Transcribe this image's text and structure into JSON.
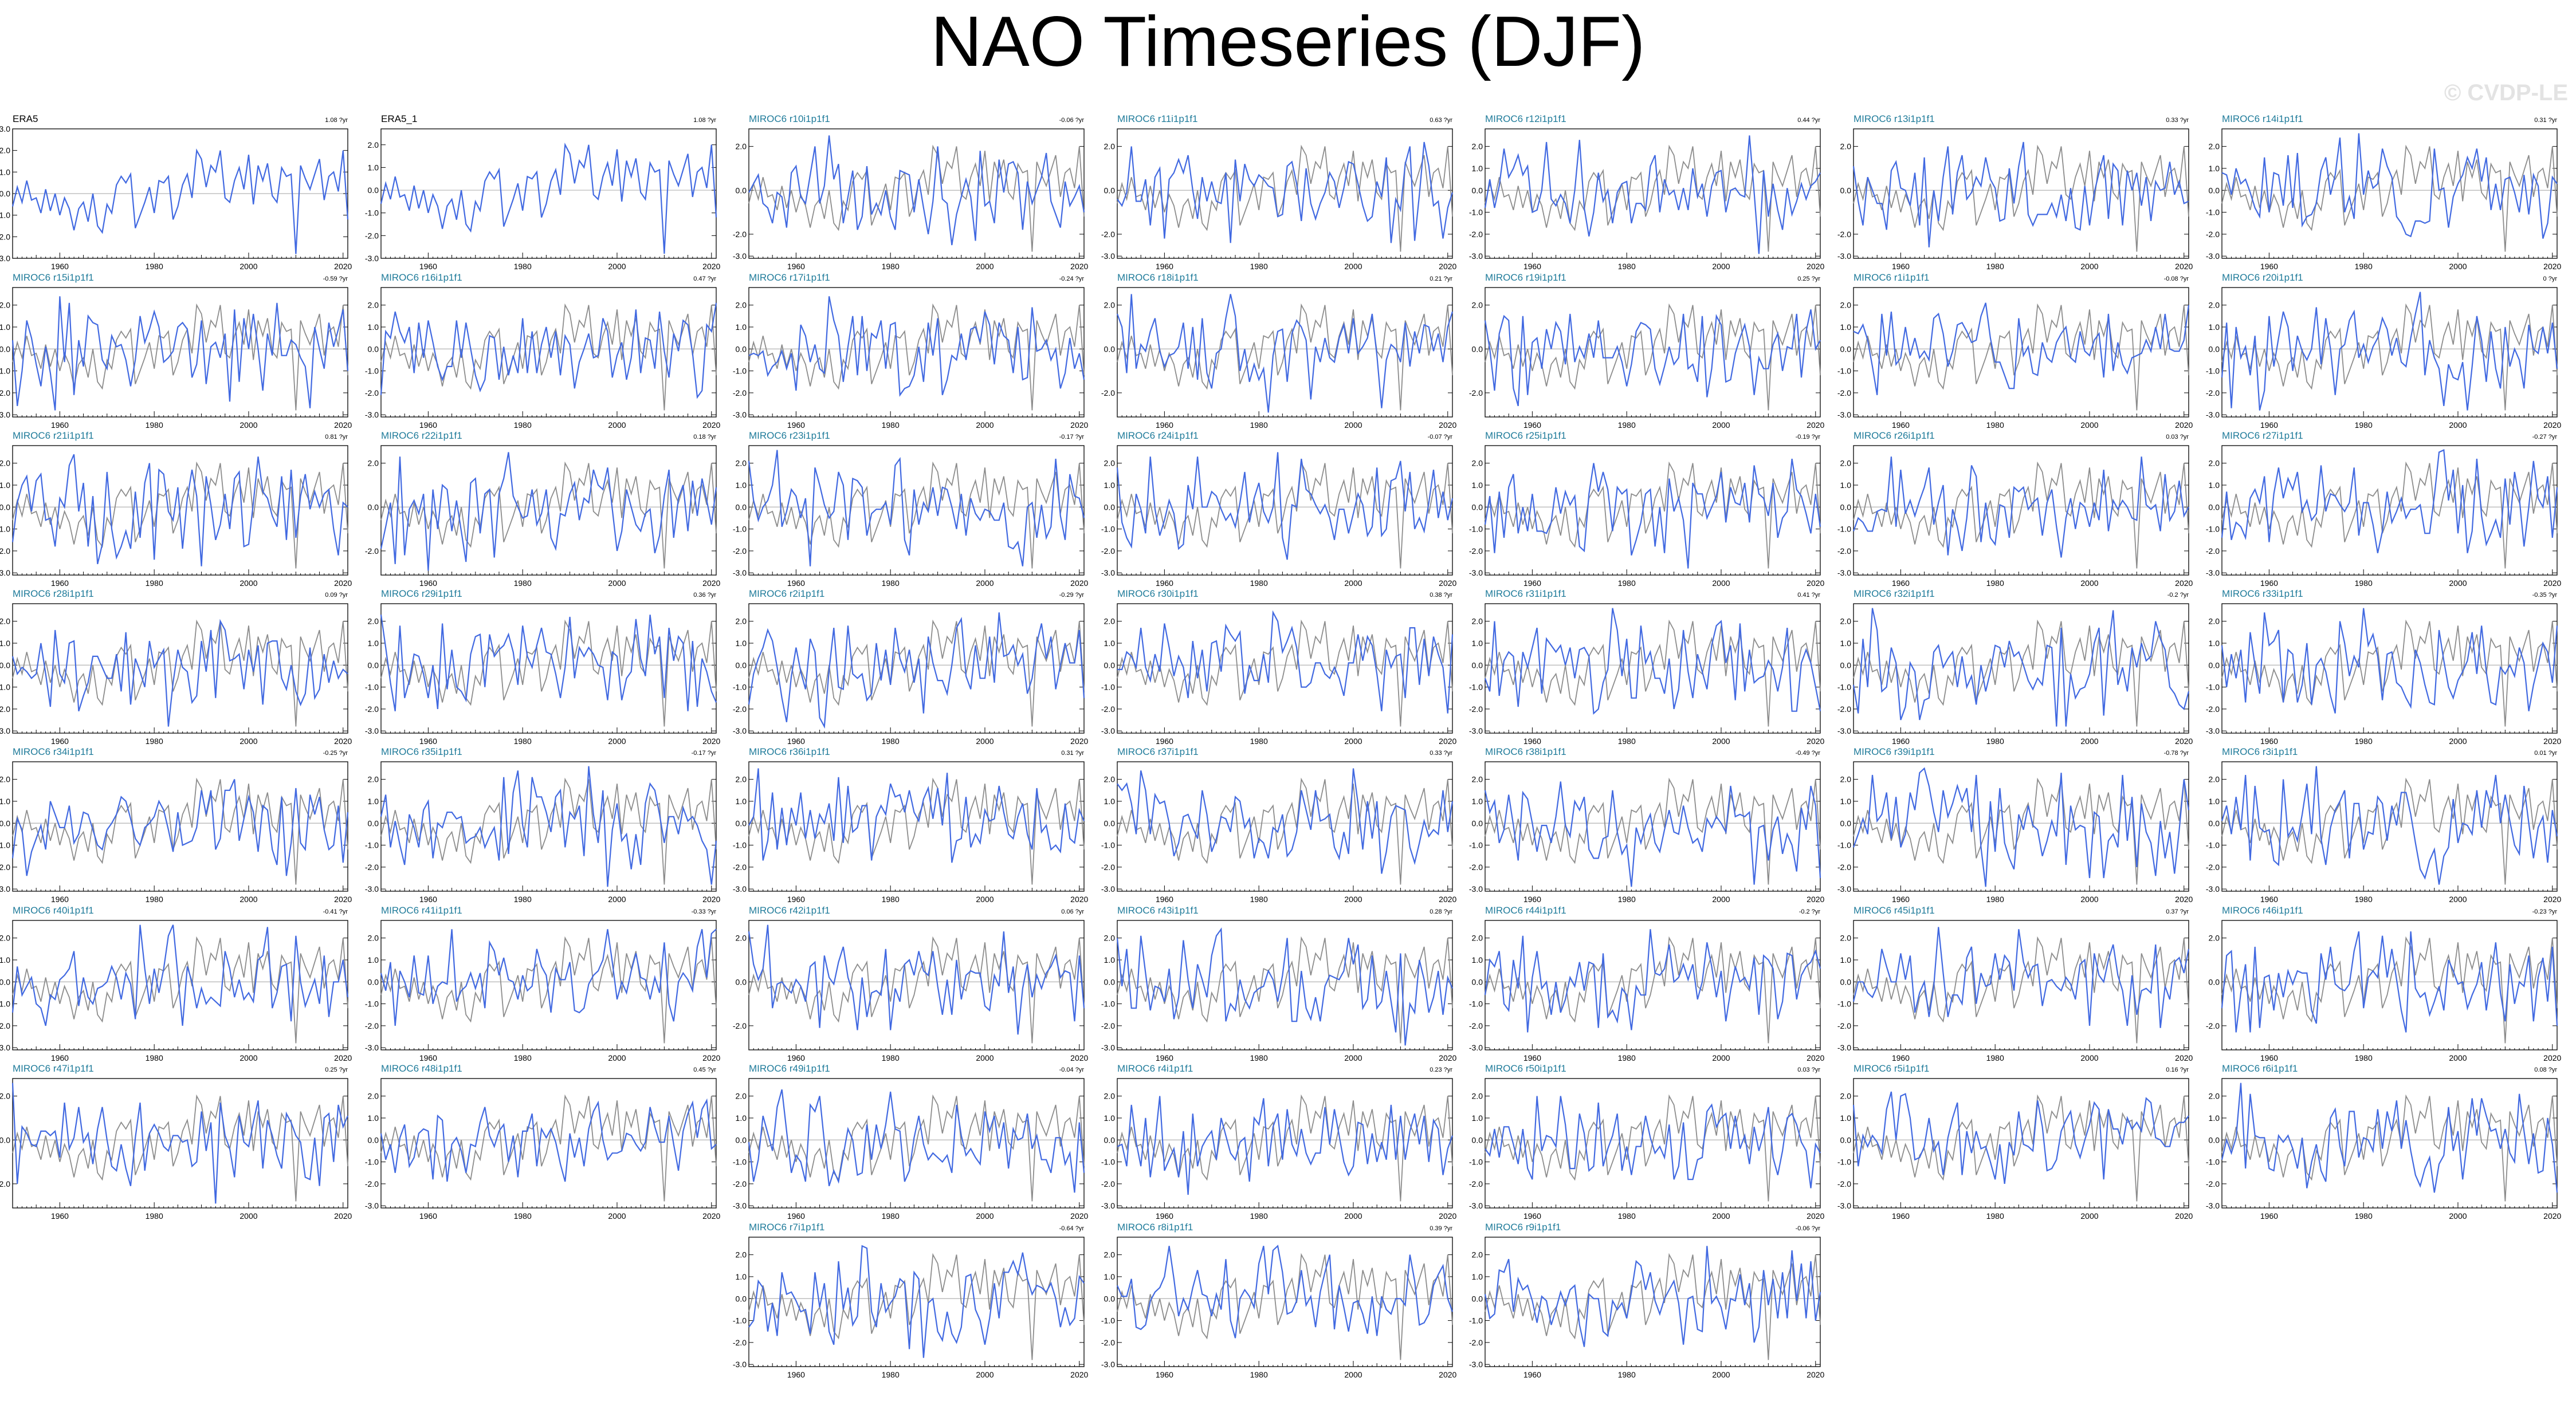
{
  "page": {
    "title": "NAO Timeseries (DJF)",
    "watermark": "© CVDP-LE"
  },
  "colors": {
    "ensemble_member": "#4169e1",
    "observation": "#000000",
    "obs_overlay": "#8c8c8c",
    "member_title": "#1f7b9a",
    "zero_line": "#b3b3b3"
  },
  "chart_data": [
    {
      "type": "line",
      "title": "ERA5",
      "trend": "1.08",
      "trend_unit": "?yr",
      "obs": true,
      "yticks": [
        -3,
        -2,
        -1,
        0,
        1,
        2,
        3
      ],
      "xticks": [
        1960,
        1980,
        2000,
        2020
      ],
      "xlim": [
        1950,
        2021
      ],
      "ylim": [
        -3,
        3
      ],
      "series": [
        {
          "values": [
            -0.6,
            0.3,
            -0.4,
            0.6,
            -0.3,
            -0.2,
            -0.9,
            0.2,
            -0.8,
            0.0,
            -1.0,
            -0.2,
            -0.7,
            -1.7,
            -0.7,
            -0.4,
            -1.3,
            0.0,
            -1.5,
            -1.8,
            -0.5,
            -0.9,
            0.4,
            0.8,
            0.5,
            0.9,
            -1.6,
            -1.0,
            -0.4,
            0.3,
            -0.9,
            0.6,
            0.5,
            0.8,
            -1.2,
            -0.6,
            0.4,
            0.9,
            -0.2,
            2.0,
            1.6,
            0.3,
            1.3,
            1.0,
            2.0,
            -0.2,
            -0.4,
            0.6,
            1.2,
            0.2,
            1.8,
            -0.5,
            1.3,
            0.6,
            1.4,
            -0.1,
            -0.4,
            1.2,
            0.8,
            0.9,
            -2.8,
            1.3,
            0.7,
            0.2,
            0.9,
            1.6,
            -0.3,
            0.8,
            1.0,
            0.1,
            2.0,
            -1.2
          ]
        }
      ]
    },
    {
      "type": "line",
      "title": "ERA5_1",
      "trend": "1.08",
      "trend_unit": "?yr",
      "obs": true,
      "yticks": [
        -3,
        -2,
        -1,
        0,
        1,
        2
      ],
      "xticks": [
        1960,
        1980,
        2000,
        2020
      ],
      "xlim": [
        1950,
        2021
      ],
      "ylim": [
        -3,
        2.7
      ],
      "series": [
        {
          "values": [
            -0.6,
            0.3,
            -0.4,
            0.6,
            -0.3,
            -0.2,
            -0.9,
            0.2,
            -0.8,
            0.0,
            -1.0,
            -0.2,
            -0.7,
            -1.7,
            -0.7,
            -0.4,
            -1.3,
            0.0,
            -1.5,
            -1.8,
            -0.5,
            -0.9,
            0.4,
            0.8,
            0.5,
            0.9,
            -1.6,
            -1.0,
            -0.4,
            0.3,
            -0.9,
            0.6,
            0.5,
            0.8,
            -1.2,
            -0.6,
            0.4,
            0.9,
            -0.2,
            2.0,
            1.6,
            0.3,
            1.3,
            1.0,
            2.0,
            -0.2,
            -0.4,
            0.6,
            1.2,
            0.2,
            1.8,
            -0.5,
            1.3,
            0.6,
            1.4,
            -0.1,
            -0.4,
            1.2,
            0.8,
            0.9,
            -2.8,
            1.3,
            0.7,
            0.2,
            0.9,
            1.6,
            -0.3,
            0.8,
            1.0,
            0.1,
            2.0,
            -1.2
          ]
        }
      ]
    },
    {
      "type": "line",
      "title": "MIROC6 r10i1p1f1",
      "trend": "-0.06",
      "trend_unit": "?yr",
      "seed": 10,
      "yticks": [
        -3,
        -2,
        0,
        2
      ]
    },
    {
      "type": "line",
      "title": "MIROC6 r11i1p1f1",
      "trend": "0.63",
      "trend_unit": "?yr",
      "seed": 11,
      "yticks": [
        -3,
        -2,
        0,
        2
      ]
    },
    {
      "type": "line",
      "title": "MIROC6 r12i1p1f1",
      "trend": "0.44",
      "trend_unit": "?yr",
      "seed": 12,
      "yticks": [
        -3,
        -2,
        -1,
        0,
        1,
        2
      ]
    },
    {
      "type": "line",
      "title": "MIROC6 r13i1p1f1",
      "trend": "0.33",
      "trend_unit": "?yr",
      "seed": 13,
      "yticks": [
        -3,
        -2,
        0,
        2
      ]
    },
    {
      "type": "line",
      "title": "MIROC6 r14i1p1f1",
      "trend": "0.31",
      "trend_unit": "?yr",
      "seed": 14,
      "yticks": [
        -3,
        -2,
        -1,
        0,
        1,
        2
      ]
    },
    {
      "type": "line",
      "title": "MIROC6 r15i1p1f1",
      "trend": "-0.59",
      "trend_unit": "?yr",
      "seed": 15,
      "yticks": [
        -3,
        -2,
        -1,
        0,
        1,
        2
      ]
    },
    {
      "type": "line",
      "title": "MIROC6 r16i1p1f1",
      "trend": "0.47",
      "trend_unit": "?yr",
      "seed": 16,
      "yticks": [
        -3,
        -2,
        -1,
        0,
        1,
        2
      ]
    },
    {
      "type": "line",
      "title": "MIROC6 r17i1p1f1",
      "trend": "-0.24",
      "trend_unit": "?yr",
      "seed": 17,
      "yticks": [
        -3,
        -2,
        -1,
        0,
        1,
        2
      ]
    },
    {
      "type": "line",
      "title": "MIROC6 r18i1p1f1",
      "trend": "0.21",
      "trend_unit": "?yr",
      "seed": 18,
      "yticks": [
        -2,
        0,
        2
      ]
    },
    {
      "type": "line",
      "title": "MIROC6 r19i1p1f1",
      "trend": "0.25",
      "trend_unit": "?yr",
      "seed": 19,
      "yticks": [
        -2,
        0,
        2
      ]
    },
    {
      "type": "line",
      "title": "MIROC6 r1i1p1f1",
      "trend": "-0.08",
      "trend_unit": "?yr",
      "seed": 1,
      "yticks": [
        -3,
        -2,
        -1,
        0,
        1,
        2
      ]
    },
    {
      "type": "line",
      "title": "MIROC6 r20i1p1f1",
      "trend": "0",
      "trend_unit": "?yr",
      "seed": 20,
      "yticks": [
        -3,
        -2,
        -1,
        0,
        1,
        2
      ]
    },
    {
      "type": "line",
      "title": "MIROC6 r21i1p1f1",
      "trend": "0.81",
      "trend_unit": "?yr",
      "seed": 21,
      "yticks": [
        -3,
        -2,
        -1,
        0,
        1,
        2
      ]
    },
    {
      "type": "line",
      "title": "MIROC6 r22i1p1f1",
      "trend": "0.18",
      "trend_unit": "?yr",
      "seed": 22,
      "yticks": [
        -2,
        0,
        2
      ]
    },
    {
      "type": "line",
      "title": "MIROC6 r23i1p1f1",
      "trend": "-0.17",
      "trend_unit": "?yr",
      "seed": 23,
      "yticks": [
        -3,
        -2,
        -1,
        0,
        1,
        2
      ]
    },
    {
      "type": "line",
      "title": "MIROC6 r24i1p1f1",
      "trend": "-0.07",
      "trend_unit": "?yr",
      "seed": 24,
      "yticks": [
        -3,
        -2,
        -1,
        0,
        1,
        2
      ]
    },
    {
      "type": "line",
      "title": "MIROC6 r25i1p1f1",
      "trend": "-0.19",
      "trend_unit": "?yr",
      "seed": 25,
      "yticks": [
        -3,
        -2,
        -1,
        0,
        1,
        2
      ]
    },
    {
      "type": "line",
      "title": "MIROC6 r26i1p1f1",
      "trend": "0.03",
      "trend_unit": "?yr",
      "seed": 26,
      "yticks": [
        -3,
        -2,
        -1,
        0,
        1,
        2
      ]
    },
    {
      "type": "line",
      "title": "MIROC6 r27i1p1f1",
      "trend": "-0.27",
      "trend_unit": "?yr",
      "seed": 27,
      "yticks": [
        -3,
        -2,
        -1,
        0,
        1,
        2
      ]
    },
    {
      "type": "line",
      "title": "MIROC6 r28i1p1f1",
      "trend": "0.09",
      "trend_unit": "?yr",
      "seed": 28,
      "yticks": [
        -3,
        -2,
        -1,
        0,
        1,
        2
      ]
    },
    {
      "type": "line",
      "title": "MIROC6 r29i1p1f1",
      "trend": "0.36",
      "trend_unit": "?yr",
      "seed": 29,
      "yticks": [
        -3,
        -2,
        -1,
        0,
        1,
        2
      ]
    },
    {
      "type": "line",
      "title": "MIROC6 r2i1p1f1",
      "trend": "-0.29",
      "trend_unit": "?yr",
      "seed": 2,
      "yticks": [
        -3,
        -2,
        -1,
        0,
        1,
        2
      ]
    },
    {
      "type": "line",
      "title": "MIROC6 r30i1p1f1",
      "trend": "0.38",
      "trend_unit": "?yr",
      "seed": 30,
      "yticks": [
        -3,
        -2,
        -1,
        0,
        1,
        2
      ]
    },
    {
      "type": "line",
      "title": "MIROC6 r31i1p1f1",
      "trend": "0.41",
      "trend_unit": "?yr",
      "seed": 31,
      "yticks": [
        -3,
        -2,
        -1,
        0,
        1,
        2
      ]
    },
    {
      "type": "line",
      "title": "MIROC6 r32i1p1f1",
      "trend": "-0.2",
      "trend_unit": "?yr",
      "seed": 32,
      "yticks": [
        -3,
        -2,
        -1,
        0,
        1,
        2
      ]
    },
    {
      "type": "line",
      "title": "MIROC6 r33i1p1f1",
      "trend": "-0.35",
      "trend_unit": "?yr",
      "seed": 33,
      "yticks": [
        -3,
        -2,
        -1,
        0,
        1,
        2
      ]
    },
    {
      "type": "line",
      "title": "MIROC6 r34i1p1f1",
      "trend": "-0.25",
      "trend_unit": "?yr",
      "seed": 34,
      "yticks": [
        -3,
        -2,
        -1,
        0,
        1,
        2
      ]
    },
    {
      "type": "line",
      "title": "MIROC6 r35i1p1f1",
      "trend": "-0.17",
      "trend_unit": "?yr",
      "seed": 35,
      "yticks": [
        -3,
        -2,
        -1,
        0,
        1,
        2
      ]
    },
    {
      "type": "line",
      "title": "MIROC6 r36i1p1f1",
      "trend": "0.31",
      "trend_unit": "?yr",
      "seed": 36,
      "yticks": [
        -3,
        -2,
        -1,
        0,
        1,
        2
      ]
    },
    {
      "type": "line",
      "title": "MIROC6 r37i1p1f1",
      "trend": "0.33",
      "trend_unit": "?yr",
      "seed": 37,
      "yticks": [
        -3,
        -2,
        -1,
        0,
        1,
        2
      ]
    },
    {
      "type": "line",
      "title": "MIROC6 r38i1p1f1",
      "trend": "-0.49",
      "trend_unit": "?yr",
      "seed": 38,
      "yticks": [
        -3,
        -2,
        -1,
        0,
        1,
        2
      ]
    },
    {
      "type": "line",
      "title": "MIROC6 r39i1p1f1",
      "trend": "-0.78",
      "trend_unit": "?yr",
      "seed": 39,
      "yticks": [
        -3,
        -2,
        -1,
        0,
        1,
        2
      ]
    },
    {
      "type": "line",
      "title": "MIROC6 r3i1p1f1",
      "trend": "0.01",
      "trend_unit": "?yr",
      "seed": 3,
      "yticks": [
        -3,
        -2,
        -1,
        0,
        1,
        2
      ]
    },
    {
      "type": "line",
      "title": "MIROC6 r40i1p1f1",
      "trend": "-0.41",
      "trend_unit": "?yr",
      "seed": 40,
      "yticks": [
        -3,
        -2,
        -1,
        0,
        1,
        2
      ]
    },
    {
      "type": "line",
      "title": "MIROC6 r41i1p1f1",
      "trend": "-0.33",
      "trend_unit": "?yr",
      "seed": 41,
      "yticks": [
        -3,
        -2,
        -1,
        0,
        1,
        2
      ]
    },
    {
      "type": "line",
      "title": "MIROC6 r42i1p1f1",
      "trend": "0.06",
      "trend_unit": "?yr",
      "seed": 42,
      "yticks": [
        -2,
        0,
        2
      ]
    },
    {
      "type": "line",
      "title": "MIROC6 r43i1p1f1",
      "trend": "0.28",
      "trend_unit": "?yr",
      "seed": 43,
      "yticks": [
        -3,
        -2,
        -1,
        0,
        1,
        2
      ]
    },
    {
      "type": "line",
      "title": "MIROC6 r44i1p1f1",
      "trend": "-0.2",
      "trend_unit": "?yr",
      "seed": 44,
      "yticks": [
        -3,
        -2,
        -1,
        0,
        1,
        2
      ]
    },
    {
      "type": "line",
      "title": "MIROC6 r45i1p1f1",
      "trend": "0.37",
      "trend_unit": "?yr",
      "seed": 45,
      "yticks": [
        -3,
        -2,
        -1,
        0,
        1,
        2
      ]
    },
    {
      "type": "line",
      "title": "MIROC6 r46i1p1f1",
      "trend": "-0.23",
      "trend_unit": "?yr",
      "seed": 46,
      "yticks": [
        -2,
        0,
        2
      ]
    },
    {
      "type": "line",
      "title": "MIROC6 r47i1p1f1",
      "trend": "0.25",
      "trend_unit": "?yr",
      "seed": 47,
      "yticks": [
        -2,
        0,
        2
      ]
    },
    {
      "type": "line",
      "title": "MIROC6 r48i1p1f1",
      "trend": "0.45",
      "trend_unit": "?yr",
      "seed": 48,
      "yticks": [
        -3,
        -2,
        -1,
        0,
        1,
        2
      ]
    },
    {
      "type": "line",
      "title": "MIROC6 r49i1p1f1",
      "trend": "-0.04",
      "trend_unit": "?yr",
      "seed": 49,
      "yticks": [
        -3,
        -2,
        -1,
        0,
        1,
        2
      ]
    },
    {
      "type": "line",
      "title": "MIROC6 r4i1p1f1",
      "trend": "0.23",
      "trend_unit": "?yr",
      "seed": 4,
      "yticks": [
        -3,
        -2,
        -1,
        0,
        1,
        2
      ]
    },
    {
      "type": "line",
      "title": "MIROC6 r50i1p1f1",
      "trend": "0.03",
      "trend_unit": "?yr",
      "seed": 50,
      "yticks": [
        -3,
        -2,
        -1,
        0,
        1,
        2
      ]
    },
    {
      "type": "line",
      "title": "MIROC6 r5i1p1f1",
      "trend": "0.16",
      "trend_unit": "?yr",
      "seed": 5,
      "yticks": [
        -3,
        -2,
        -1,
        0,
        1,
        2
      ]
    },
    {
      "type": "line",
      "title": "MIROC6 r6i1p1f1",
      "trend": "0.08",
      "trend_unit": "?yr",
      "seed": 6,
      "yticks": [
        -3,
        -2,
        -1,
        0,
        1,
        2
      ]
    },
    {
      "type": "line",
      "title": "MIROC6 r7i1p1f1",
      "trend": "-0.64",
      "trend_unit": "?yr",
      "seed": 7,
      "yticks": [
        -3,
        -2,
        -1,
        0,
        1,
        2
      ]
    },
    {
      "type": "line",
      "title": "MIROC6 r8i1p1f1",
      "trend": "0.39",
      "trend_unit": "?yr",
      "seed": 8,
      "yticks": [
        -3,
        -2,
        -1,
        0,
        1,
        2
      ]
    },
    {
      "type": "line",
      "title": "MIROC6 r9i1p1f1",
      "trend": "-0.06",
      "trend_unit": "?yr",
      "seed": 9,
      "yticks": [
        -3,
        -2,
        -1,
        0,
        1,
        2
      ]
    }
  ]
}
